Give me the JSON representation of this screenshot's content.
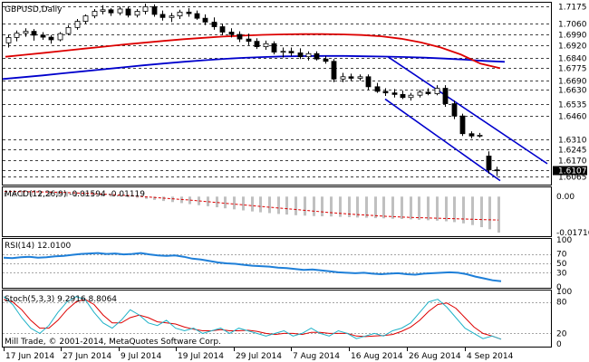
{
  "symbol_title": "GBPUSD,Daily",
  "copyright": "Mill Trade, © 2001-2014, MetaQuotes Software Corp.",
  "colors": {
    "ma_fast": "#dd0000",
    "ma_slow": "#0000cc",
    "channel": "#0000cc",
    "rsi_line": "#1e7fd8",
    "stoch_main": "#20b2c8",
    "stoch_signal": "#dd0000",
    "macd_hist": "#c0c0c0",
    "macd_signal": "#dd0000"
  },
  "chart_data": [
    {
      "type": "candlestick",
      "title": "GBPUSD,Daily",
      "x_tick_labels": [
        "17 Jun 2014",
        "27 Jun 2014",
        "9 Jul 2014",
        "19 Jul 2014",
        "29 Jul 2014",
        "7 Aug 2014",
        "16 Aug 2014",
        "26 Aug 2014",
        "4 Sep 2014"
      ],
      "price_levels": [
        "1.7175",
        "1.7060",
        "1.6990",
        "1.6920",
        "1.6840",
        "1.6775",
        "1.6690",
        "1.6630",
        "1.6535",
        "1.6460",
        "1.6310",
        "1.6245",
        "1.6170",
        "1.6107",
        "1.6065"
      ],
      "ylim": [
        1.602,
        1.719
      ],
      "candles_ohlc": [
        [
          1.6935,
          1.6985,
          1.6905,
          1.697
        ],
        [
          1.697,
          1.7015,
          1.6945,
          1.6998
        ],
        [
          1.6998,
          1.703,
          1.6975,
          1.701
        ],
        [
          1.701,
          1.7025,
          1.695,
          1.6985
        ],
        [
          1.6985,
          1.7005,
          1.6955,
          1.6972
        ],
        [
          1.6972,
          1.6985,
          1.693,
          1.6955
        ],
        [
          1.6955,
          1.7005,
          1.6945,
          1.6995
        ],
        [
          1.6995,
          1.705,
          1.6985,
          1.7035
        ],
        [
          1.7035,
          1.709,
          1.702,
          1.7075
        ],
        [
          1.7075,
          1.712,
          1.706,
          1.711
        ],
        [
          1.711,
          1.7155,
          1.7095,
          1.714
        ],
        [
          1.714,
          1.718,
          1.712,
          1.715
        ],
        [
          1.715,
          1.716,
          1.711,
          1.713
        ],
        [
          1.713,
          1.717,
          1.7115,
          1.7155
        ],
        [
          1.7155,
          1.717,
          1.71,
          1.7115
        ],
        [
          1.7115,
          1.7155,
          1.71,
          1.714
        ],
        [
          1.714,
          1.719,
          1.712,
          1.717
        ],
        [
          1.717,
          1.7185,
          1.7105,
          1.712
        ],
        [
          1.712,
          1.7145,
          1.708,
          1.71
        ],
        [
          1.71,
          1.713,
          1.707,
          1.711
        ],
        [
          1.711,
          1.715,
          1.709,
          1.7135
        ],
        [
          1.7135,
          1.716,
          1.7105,
          1.7125
        ],
        [
          1.7125,
          1.7145,
          1.7085,
          1.7095
        ],
        [
          1.7095,
          1.712,
          1.705,
          1.707
        ],
        [
          1.707,
          1.71,
          1.702,
          1.704
        ],
        [
          1.704,
          1.706,
          1.6985,
          1.7005
        ],
        [
          1.7005,
          1.703,
          1.697,
          1.699
        ],
        [
          1.699,
          1.701,
          1.694,
          1.696
        ],
        [
          1.696,
          1.6995,
          1.692,
          1.6945
        ],
        [
          1.6945,
          1.6965,
          1.6895,
          1.691
        ],
        [
          1.691,
          1.695,
          1.689,
          1.693
        ],
        [
          1.693,
          1.6945,
          1.686,
          1.6875
        ],
        [
          1.6875,
          1.6905,
          1.684,
          1.688
        ],
        [
          1.688,
          1.6905,
          1.685,
          1.687
        ],
        [
          1.687,
          1.69,
          1.683,
          1.6845
        ],
        [
          1.6845,
          1.688,
          1.682,
          1.6865
        ],
        [
          1.6865,
          1.688,
          1.682,
          1.683
        ],
        [
          1.683,
          1.685,
          1.68,
          1.6815
        ],
        [
          1.6815,
          1.683,
          1.668,
          1.67
        ],
        [
          1.67,
          1.674,
          1.668,
          1.6715
        ],
        [
          1.6715,
          1.6735,
          1.669,
          1.6705
        ],
        [
          1.6705,
          1.673,
          1.669,
          1.6715
        ],
        [
          1.6715,
          1.673,
          1.663,
          1.665
        ],
        [
          1.665,
          1.6675,
          1.661,
          1.662
        ],
        [
          1.662,
          1.664,
          1.659,
          1.661
        ],
        [
          1.661,
          1.6635,
          1.658,
          1.66
        ],
        [
          1.66,
          1.6625,
          1.657,
          1.658
        ],
        [
          1.658,
          1.661,
          1.656,
          1.6595
        ],
        [
          1.6595,
          1.663,
          1.658,
          1.6615
        ],
        [
          1.6615,
          1.664,
          1.6595,
          1.6605
        ],
        [
          1.6605,
          1.666,
          1.6595,
          1.664
        ],
        [
          1.664,
          1.666,
          1.652,
          1.654
        ],
        [
          1.654,
          1.656,
          1.644,
          1.646
        ],
        [
          1.646,
          1.6475,
          1.633,
          1.6345
        ],
        [
          1.6345,
          1.636,
          1.6315,
          1.633
        ],
        [
          1.633,
          1.635,
          1.632,
          1.6335
        ],
        [
          1.62,
          1.623,
          1.6085,
          1.611
        ],
        [
          1.611,
          1.613,
          1.607,
          1.6107
        ]
      ],
      "ma_fast_values": [
        1.6845,
        1.6858,
        1.6871,
        1.6884,
        1.6898,
        1.6911,
        1.6924,
        1.6936,
        1.6948,
        1.6959,
        1.6968,
        1.6976,
        1.6982,
        1.6987,
        1.699,
        1.6992,
        1.6992,
        1.699,
        1.6986,
        1.6978,
        1.6962,
        1.6938,
        1.6905,
        1.686,
        1.68,
        1.677
      ],
      "ma_slow_values": [
        1.67,
        1.6712,
        1.6724,
        1.6737,
        1.675,
        1.6763,
        1.6776,
        1.6789,
        1.6801,
        1.6812,
        1.6822,
        1.6831,
        1.6838,
        1.6843,
        1.6847,
        1.6849,
        1.685,
        1.685,
        1.6848,
        1.6846,
        1.6843,
        1.6839,
        1.6833,
        1.6826,
        1.6818,
        1.6812
      ],
      "channel_lines": [
        {
          "from": [
            1.6845,
            "ch_upper_start"
          ],
          "to": [
            1.615,
            "ch_upper_end"
          ]
        },
        {
          "from": [
            1.657,
            "ch_lower_start"
          ],
          "to": [
            1.604,
            "ch_lower_end"
          ]
        }
      ]
    },
    {
      "type": "bar",
      "title": "MACD(12,26,9) -0.01594 -0.01119",
      "name": "MACD(12,26,9)",
      "values_label": "-0.01594 -0.01119",
      "ylim": [
        -0.0185,
        0.004
      ],
      "tick_labels": [
        "0.00",
        "-0.01716"
      ],
      "histogram": [
        0.002,
        0.0022,
        0.0024,
        0.0025,
        0.0026,
        0.0026,
        0.0025,
        0.0024,
        0.0022,
        0.002,
        0.0017,
        0.0013,
        0.0009,
        0.0004,
        -0.0001,
        -0.0006,
        -0.0011,
        -0.0016,
        -0.0021,
        -0.0026,
        -0.0031,
        -0.0036,
        -0.0041,
        -0.0046,
        -0.0051,
        -0.0056,
        -0.0061,
        -0.0066,
        -0.0071,
        -0.0075,
        -0.0079,
        -0.0083,
        -0.0086,
        -0.0089,
        -0.0091,
        -0.0093,
        -0.0094,
        -0.0095,
        -0.0097,
        -0.0098,
        -0.01,
        -0.0101,
        -0.0103,
        -0.0104,
        -0.0106,
        -0.0107,
        -0.0109,
        -0.0111,
        -0.0113,
        -0.0115,
        -0.0118,
        -0.0122,
        -0.0128,
        -0.0136,
        -0.0146,
        -0.0156,
        -0.0172
      ],
      "signal": [
        0.0025,
        0.0024,
        0.0023,
        0.0022,
        0.002,
        0.0018,
        0.0015,
        0.0012,
        0.0008,
        0.0004,
        -0.0001,
        -0.0006,
        -0.0011,
        -0.0016,
        -0.0022,
        -0.0028,
        -0.0034,
        -0.004,
        -0.0046,
        -0.0052,
        -0.0058,
        -0.0064,
        -0.007,
        -0.0076,
        -0.0081,
        -0.0086,
        -0.009,
        -0.0094,
        -0.0097,
        -0.01,
        -0.0102,
        -0.0104,
        -0.0106,
        -0.0108,
        -0.011,
        -0.0112
      ]
    },
    {
      "type": "line",
      "title": "RSI(14) 12.0100",
      "name": "RSI(14)",
      "value_label": "12.0100",
      "ylim": [
        0,
        100
      ],
      "tick_labels": [
        "100",
        "70",
        "50",
        "30",
        "0"
      ],
      "levels": [
        70,
        50,
        30
      ],
      "values": [
        62,
        61,
        63,
        64,
        62,
        63,
        65,
        66,
        68,
        70,
        71,
        72,
        70,
        71,
        69,
        70,
        72,
        69,
        67,
        66,
        67,
        64,
        60,
        58,
        55,
        52,
        50,
        49,
        47,
        45,
        44,
        43,
        41,
        40,
        38,
        36,
        37,
        35,
        33,
        31,
        30,
        29,
        30,
        28,
        27,
        28,
        29,
        27,
        26,
        28,
        29,
        30,
        31,
        30,
        27,
        22,
        18,
        14,
        12
      ]
    },
    {
      "type": "line",
      "title": "Stoch(5,3,3) 9.2916 8.8064",
      "name": "Stoch(5,3,3)",
      "value_label": "9.2916 8.8064",
      "ylim": [
        0,
        100
      ],
      "tick_labels": [
        "100",
        "80",
        "20",
        "0"
      ],
      "levels": [
        80,
        20
      ],
      "main": [
        90,
        75,
        50,
        30,
        20,
        35,
        60,
        80,
        90,
        85,
        60,
        40,
        30,
        45,
        65,
        55,
        40,
        35,
        45,
        30,
        25,
        30,
        20,
        25,
        30,
        20,
        30,
        25,
        20,
        15,
        20,
        25,
        15,
        20,
        30,
        20,
        15,
        25,
        20,
        10,
        15,
        20,
        15,
        25,
        30,
        40,
        60,
        80,
        85,
        70,
        50,
        30,
        20,
        10,
        15,
        9
      ],
      "signal": [
        85,
        80,
        65,
        45,
        30,
        30,
        45,
        65,
        80,
        85,
        75,
        55,
        40,
        40,
        50,
        55,
        50,
        42,
        40,
        38,
        32,
        28,
        25,
        25,
        27,
        25,
        25,
        26,
        24,
        20,
        18,
        20,
        20,
        18,
        22,
        22,
        20,
        20,
        20,
        15,
        14,
        15,
        16,
        18,
        24,
        32,
        45,
        62,
        75,
        78,
        68,
        50,
        32,
        20,
        15,
        9
      ]
    }
  ]
}
